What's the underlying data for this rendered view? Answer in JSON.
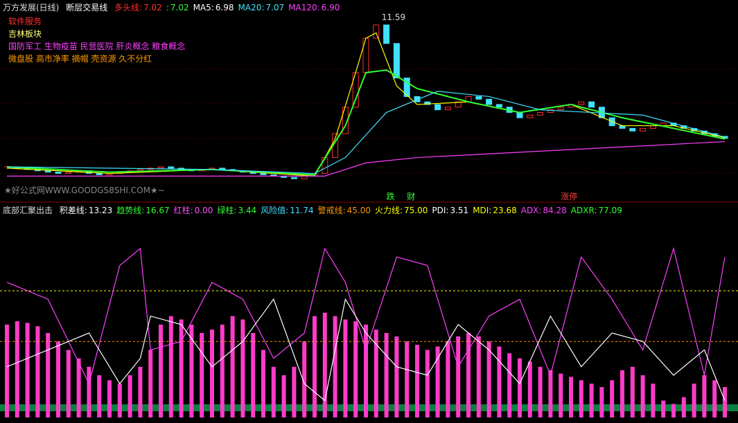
{
  "header": {
    "stock": "万方发展(日线)",
    "indicator": "断层交易线",
    "items": [
      {
        "name": "多头线:",
        "value": 7.02,
        "color": "#ff3030"
      },
      {
        "name": ":",
        "value": 7.02,
        "color": "#30ff30"
      },
      {
        "name": "MA5:",
        "value": 6.98,
        "color": "#ffffff"
      },
      {
        "name": "MA20:",
        "value": 7.07,
        "color": "#40e0ff"
      },
      {
        "name": "MA120:",
        "value": {
          "value": 6.9,
          "label": "6.90"
        },
        "color": "#ff40ff"
      }
    ]
  },
  "tags": [
    {
      "text": "软件服务",
      "color": "#ff3030"
    },
    {
      "text": "吉林板块",
      "color": "#ffff80"
    },
    {
      "text": "国防军工 生物疫苗 民营医院 肝炎概念 粮食概念",
      "color": "#ff40ff"
    },
    {
      "text": "微盘股 高市净率 摘帽 壳资源 久不分红",
      "color": "#ff9900"
    }
  ],
  "watermark": "★好公式网WWW.GOODGS8SHI.COM★~",
  "price_panel": {
    "ylim": [
      4.67,
      12.24
    ],
    "high_label": 11.59,
    "high_index": 36,
    "markers": [
      {
        "text": "跌",
        "index": 37,
        "color": "#30ff30"
      },
      {
        "text": "财",
        "index": 39,
        "color": "#30ff30"
      },
      {
        "text": "涨停",
        "index": 54,
        "color": "#ff4040"
      }
    ],
    "closes": [
      5.95,
      5.9,
      5.85,
      5.8,
      5.75,
      5.7,
      5.75,
      5.8,
      5.7,
      5.65,
      5.7,
      5.75,
      5.8,
      5.85,
      5.9,
      5.95,
      5.9,
      5.85,
      5.8,
      5.85,
      5.9,
      5.85,
      5.8,
      5.75,
      5.7,
      5.65,
      5.6,
      5.55,
      5.5,
      5.6,
      5.7,
      6.3,
      7.2,
      8.2,
      9.5,
      10.8,
      11.3,
      10.6,
      9.3,
      8.6,
      8.4,
      8.3,
      8.1,
      8.2,
      8.4,
      8.6,
      8.5,
      8.3,
      8.2,
      8.0,
      7.8,
      7.9,
      8.0,
      8.1,
      8.2,
      8.3,
      8.4,
      8.2,
      7.8,
      7.5,
      7.4,
      7.3,
      7.4,
      7.5,
      7.6,
      7.5,
      7.4,
      7.3,
      7.2,
      7.1,
      7.02
    ],
    "lines": [
      {
        "color": "#ffff00",
        "x": [
          0,
          10,
          20,
          30,
          32,
          34,
          35,
          36,
          38,
          40,
          45,
          50,
          55,
          60,
          65,
          70
        ],
        "values": [
          5.9,
          5.7,
          5.85,
          5.6,
          7.0,
          9.5,
          10.8,
          11.0,
          9.0,
          8.3,
          8.4,
          8.0,
          8.3,
          7.5,
          7.5,
          7.05
        ]
      },
      {
        "color": "#30ff30",
        "x": [
          0,
          10,
          20,
          30,
          33,
          35,
          37,
          40,
          45,
          50,
          55,
          60,
          65,
          70
        ],
        "values": [
          5.95,
          5.75,
          5.85,
          5.65,
          7.5,
          9.5,
          9.6,
          8.9,
          8.4,
          8.0,
          8.3,
          7.8,
          7.4,
          7.0
        ]
      },
      {
        "color": "#40e0ff",
        "x": [
          0,
          20,
          30,
          33,
          37,
          42,
          47,
          52,
          57,
          62,
          70
        ],
        "values": [
          5.95,
          5.85,
          5.7,
          6.3,
          8.0,
          8.8,
          8.6,
          8.1,
          8.0,
          7.9,
          7.07
        ]
      },
      {
        "color": "#ff40ff",
        "x": [
          0,
          20,
          31,
          35,
          40,
          50,
          60,
          70
        ],
        "values": [
          5.6,
          5.6,
          5.6,
          6.1,
          6.3,
          6.5,
          6.7,
          6.9
        ]
      }
    ]
  },
  "indicator_panel": {
    "title": "底部汇聚出击",
    "ylim": [
      0,
      100
    ],
    "items": [
      {
        "name": "积差线:",
        "value": 13.23,
        "color": "#ffffff"
      },
      {
        "name": "趋势线:",
        "value": 16.67,
        "color": "#30ff30"
      },
      {
        "name": "红柱:",
        "value": {
          "value": 0,
          "label": "0.00"
        },
        "color": "#ff50ff"
      },
      {
        "name": "绿柱:",
        "value": 3.44,
        "color": "#30ff30"
      },
      {
        "name": "风险值:",
        "value": 11.74,
        "color": "#40e0ff"
      },
      {
        "name": "警戒线:",
        "value": {
          "value": 45,
          "label": "45.00"
        },
        "color": "#ff9900"
      },
      {
        "name": "火力线:",
        "value": {
          "value": 75,
          "label": "75.00"
        },
        "color": "#ffff00"
      },
      {
        "name": "PDI:",
        "value": 3.51,
        "color": "#ffffff"
      },
      {
        "name": "MDI:",
        "value": 23.68,
        "color": "#ffff00"
      },
      {
        "name": "ADX:",
        "value": 84.28,
        "color": "#ff40ff"
      },
      {
        "name": "ADXR:",
        "value": 77.09,
        "color": "#30ff30"
      }
    ],
    "bars": [
      55,
      57,
      56,
      54,
      50,
      45,
      40,
      35,
      30,
      25,
      22,
      20,
      25,
      30,
      40,
      55,
      60,
      58,
      55,
      50,
      52,
      55,
      60,
      58,
      50,
      40,
      30,
      25,
      30,
      45,
      60,
      62,
      60,
      58,
      57,
      55,
      52,
      50,
      48,
      45,
      43,
      40,
      42,
      45,
      48,
      50,
      48,
      45,
      42,
      38,
      35,
      33,
      30,
      28,
      26,
      24,
      22,
      20,
      18,
      22,
      28,
      30,
      25,
      20,
      10,
      8,
      12,
      20,
      25,
      22,
      18
    ],
    "bar_color": "#ff3cc8",
    "lines": [
      {
        "color": "#ff40ff",
        "x": [
          0,
          4,
          8,
          11,
          13,
          14,
          17,
          20,
          23,
          26,
          29,
          31,
          33,
          35,
          38,
          41,
          44,
          47,
          50,
          53,
          56,
          59,
          62,
          65,
          68,
          70
        ],
        "values": [
          80,
          70,
          20,
          90,
          100,
          40,
          45,
          80,
          70,
          35,
          50,
          100,
          80,
          40,
          95,
          90,
          30,
          60,
          70,
          25,
          95,
          70,
          40,
          100,
          25,
          95
        ]
      },
      {
        "color": "#ffffff",
        "x": [
          0,
          4,
          8,
          11,
          13,
          14,
          17,
          20,
          23,
          26,
          29,
          31,
          33,
          35,
          38,
          41,
          44,
          47,
          50,
          53,
          56,
          59,
          62,
          65,
          68,
          70
        ],
        "values": [
          30,
          40,
          50,
          20,
          35,
          60,
          55,
          30,
          45,
          70,
          20,
          10,
          70,
          50,
          30,
          25,
          55,
          40,
          20,
          60,
          30,
          50,
          45,
          25,
          40,
          10
        ]
      }
    ]
  }
}
